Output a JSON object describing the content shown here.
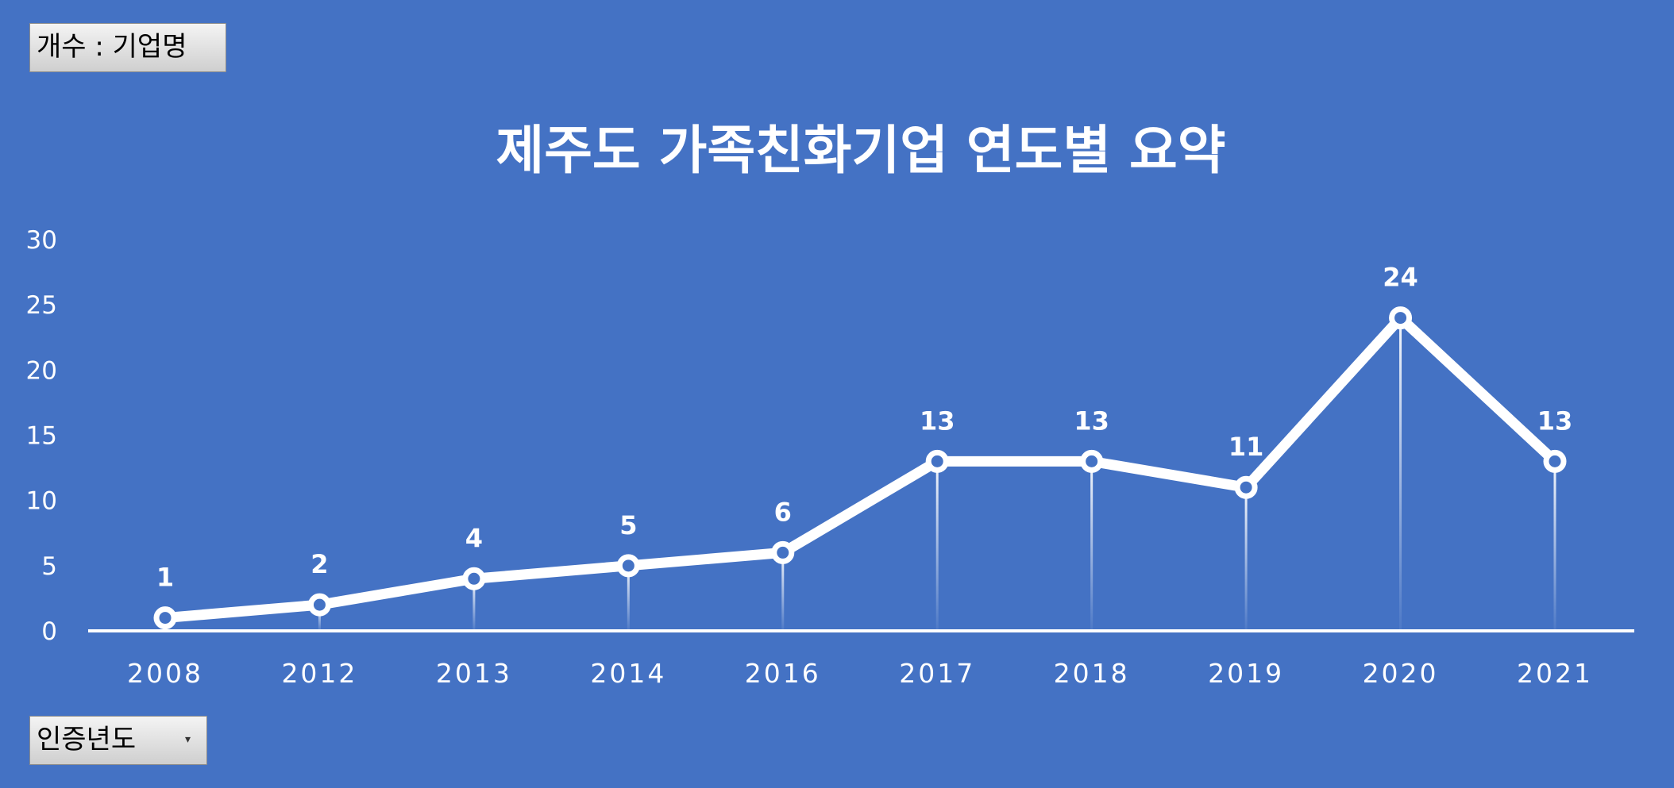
{
  "value_field": {
    "label": "개수 : 기업명"
  },
  "row_field": {
    "label": "인증년도",
    "arrow": "▾"
  },
  "colors": {
    "background": "#4472c4",
    "line": "#ffffff"
  },
  "chart_data": {
    "type": "line",
    "title": "제주도 가족친화기업 연도별 요약",
    "categories": [
      "2008",
      "2012",
      "2013",
      "2014",
      "2016",
      "2017",
      "2018",
      "2019",
      "2020",
      "2021"
    ],
    "series": [
      {
        "values": [
          1,
          2,
          4,
          5,
          6,
          13,
          13,
          11,
          24,
          13
        ]
      }
    ],
    "ylim": [
      0,
      30
    ],
    "yticks": [
      0,
      5,
      10,
      15,
      20,
      25,
      30
    ],
    "data_labels": true,
    "drop_lines": true,
    "markers": "circle",
    "grid": false,
    "legend": "none"
  }
}
